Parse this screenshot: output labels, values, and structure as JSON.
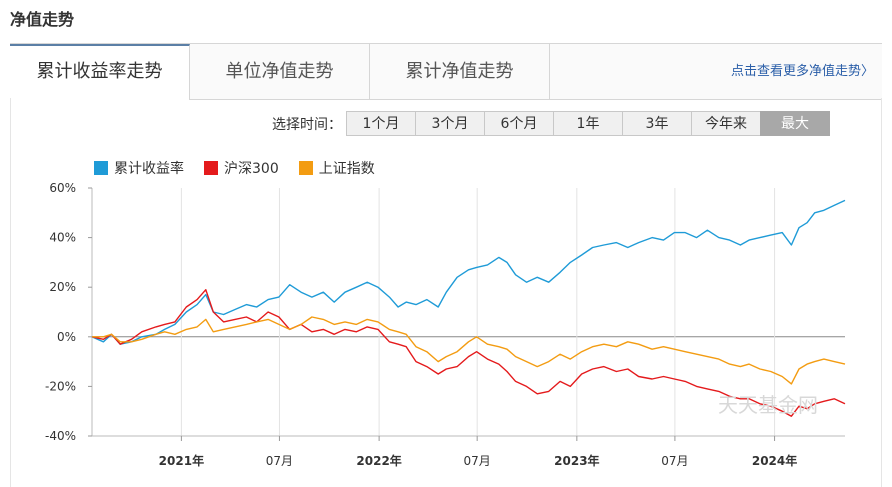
{
  "page_title": "净值走势",
  "tabs": [
    {
      "label": "累计收益率走势",
      "active": true
    },
    {
      "label": "单位净值走势",
      "active": false
    },
    {
      "label": "累计净值走势",
      "active": false
    }
  ],
  "more_link": "点击查看更多净值走势〉",
  "range": {
    "label": "选择时间：",
    "options": [
      "1个月",
      "3个月",
      "6个月",
      "1年",
      "3年",
      "今年来",
      "最大"
    ],
    "selected": "最大"
  },
  "watermark": "天天基金网",
  "chart_data": {
    "type": "line",
    "ylim": [
      -40,
      60
    ],
    "yticks": [
      60,
      40,
      20,
      0,
      -20,
      -40
    ],
    "ytick_labels": [
      "60%",
      "40%",
      "20%",
      "0%",
      "-20%",
      "-40%"
    ],
    "x_ticks": [
      {
        "date": "2021-01-01",
        "label": "2021年",
        "bold": true
      },
      {
        "date": "2021-07-01",
        "label": "07月",
        "bold": false
      },
      {
        "date": "2022-01-01",
        "label": "2022年",
        "bold": true
      },
      {
        "date": "2022-07-01",
        "label": "07月",
        "bold": false
      },
      {
        "date": "2023-01-01",
        "label": "2023年",
        "bold": true
      },
      {
        "date": "2023-07-01",
        "label": "07月",
        "bold": false
      },
      {
        "date": "2024-01-01",
        "label": "2024年",
        "bold": true
      }
    ],
    "xlim": [
      "2020-07-20",
      "2024-05-10"
    ],
    "grid": "vertical",
    "legend_position": "top-left",
    "series": [
      {
        "name": "累计收益率",
        "color": "#1f9bd7",
        "points": [
          [
            "2020-07-20",
            0
          ],
          [
            "2020-08-10",
            -2
          ],
          [
            "2020-08-25",
            1
          ],
          [
            "2020-09-10",
            -3
          ],
          [
            "2020-10-01",
            -2
          ],
          [
            "2020-10-20",
            0
          ],
          [
            "2020-11-15",
            1
          ],
          [
            "2020-12-01",
            3
          ],
          [
            "2020-12-20",
            5
          ],
          [
            "2021-01-10",
            10
          ],
          [
            "2021-01-30",
            13
          ],
          [
            "2021-02-15",
            17
          ],
          [
            "2021-03-01",
            10
          ],
          [
            "2021-03-20",
            9
          ],
          [
            "2021-04-10",
            11
          ],
          [
            "2021-05-01",
            13
          ],
          [
            "2021-05-20",
            12
          ],
          [
            "2021-06-10",
            15
          ],
          [
            "2021-06-30",
            16
          ],
          [
            "2021-07-20",
            21
          ],
          [
            "2021-08-10",
            18
          ],
          [
            "2021-08-30",
            16
          ],
          [
            "2021-09-20",
            18
          ],
          [
            "2021-10-10",
            14
          ],
          [
            "2021-10-30",
            18
          ],
          [
            "2021-11-20",
            20
          ],
          [
            "2021-12-10",
            22
          ],
          [
            "2021-12-30",
            20
          ],
          [
            "2022-01-20",
            16
          ],
          [
            "2022-02-05",
            12
          ],
          [
            "2022-02-20",
            14
          ],
          [
            "2022-03-10",
            13
          ],
          [
            "2022-03-30",
            15
          ],
          [
            "2022-04-20",
            12
          ],
          [
            "2022-05-05",
            18
          ],
          [
            "2022-05-25",
            24
          ],
          [
            "2022-06-15",
            27
          ],
          [
            "2022-06-30",
            28
          ],
          [
            "2022-07-20",
            29
          ],
          [
            "2022-08-10",
            32
          ],
          [
            "2022-08-25",
            30
          ],
          [
            "2022-09-10",
            25
          ],
          [
            "2022-09-30",
            22
          ],
          [
            "2022-10-20",
            24
          ],
          [
            "2022-11-10",
            22
          ],
          [
            "2022-12-01",
            26
          ],
          [
            "2022-12-20",
            30
          ],
          [
            "2023-01-10",
            33
          ],
          [
            "2023-01-30",
            36
          ],
          [
            "2023-02-20",
            37
          ],
          [
            "2023-03-15",
            38
          ],
          [
            "2023-04-05",
            36
          ],
          [
            "2023-04-25",
            38
          ],
          [
            "2023-05-20",
            40
          ],
          [
            "2023-06-10",
            39
          ],
          [
            "2023-06-30",
            42
          ],
          [
            "2023-07-20",
            42
          ],
          [
            "2023-08-10",
            40
          ],
          [
            "2023-08-30",
            43
          ],
          [
            "2023-09-20",
            40
          ],
          [
            "2023-10-10",
            39
          ],
          [
            "2023-10-30",
            37
          ],
          [
            "2023-11-15",
            39
          ],
          [
            "2023-12-05",
            40
          ],
          [
            "2023-12-25",
            41
          ],
          [
            "2024-01-15",
            42
          ],
          [
            "2024-02-01",
            37
          ],
          [
            "2024-02-15",
            44
          ],
          [
            "2024-03-01",
            46
          ],
          [
            "2024-03-15",
            50
          ],
          [
            "2024-04-01",
            51
          ],
          [
            "2024-04-20",
            53
          ],
          [
            "2024-05-10",
            55
          ]
        ]
      },
      {
        "name": "沪深300",
        "color": "#e41a1c",
        "points": [
          [
            "2020-07-20",
            0
          ],
          [
            "2020-08-10",
            -1
          ],
          [
            "2020-08-25",
            1
          ],
          [
            "2020-09-10",
            -3
          ],
          [
            "2020-10-01",
            -1
          ],
          [
            "2020-10-20",
            2
          ],
          [
            "2020-11-15",
            4
          ],
          [
            "2020-12-01",
            5
          ],
          [
            "2020-12-20",
            6
          ],
          [
            "2021-01-10",
            12
          ],
          [
            "2021-01-30",
            15
          ],
          [
            "2021-02-15",
            19
          ],
          [
            "2021-03-01",
            10
          ],
          [
            "2021-03-20",
            6
          ],
          [
            "2021-04-10",
            7
          ],
          [
            "2021-05-01",
            8
          ],
          [
            "2021-05-20",
            6
          ],
          [
            "2021-06-10",
            10
          ],
          [
            "2021-06-30",
            8
          ],
          [
            "2021-07-20",
            3
          ],
          [
            "2021-08-10",
            5
          ],
          [
            "2021-08-30",
            2
          ],
          [
            "2021-09-20",
            3
          ],
          [
            "2021-10-10",
            1
          ],
          [
            "2021-10-30",
            3
          ],
          [
            "2021-11-20",
            2
          ],
          [
            "2021-12-10",
            4
          ],
          [
            "2021-12-30",
            3
          ],
          [
            "2022-01-20",
            -2
          ],
          [
            "2022-02-05",
            -3
          ],
          [
            "2022-02-20",
            -4
          ],
          [
            "2022-03-10",
            -10
          ],
          [
            "2022-03-30",
            -12
          ],
          [
            "2022-04-20",
            -15
          ],
          [
            "2022-05-05",
            -13
          ],
          [
            "2022-05-25",
            -12
          ],
          [
            "2022-06-15",
            -8
          ],
          [
            "2022-06-30",
            -6
          ],
          [
            "2022-07-20",
            -9
          ],
          [
            "2022-08-10",
            -11
          ],
          [
            "2022-08-25",
            -14
          ],
          [
            "2022-09-10",
            -18
          ],
          [
            "2022-09-30",
            -20
          ],
          [
            "2022-10-20",
            -23
          ],
          [
            "2022-11-10",
            -22
          ],
          [
            "2022-12-01",
            -18
          ],
          [
            "2022-12-20",
            -20
          ],
          [
            "2023-01-10",
            -15
          ],
          [
            "2023-01-30",
            -13
          ],
          [
            "2023-02-20",
            -12
          ],
          [
            "2023-03-15",
            -14
          ],
          [
            "2023-04-05",
            -13
          ],
          [
            "2023-04-25",
            -16
          ],
          [
            "2023-05-20",
            -17
          ],
          [
            "2023-06-10",
            -16
          ],
          [
            "2023-06-30",
            -17
          ],
          [
            "2023-07-20",
            -18
          ],
          [
            "2023-08-10",
            -20
          ],
          [
            "2023-08-30",
            -21
          ],
          [
            "2023-09-20",
            -22
          ],
          [
            "2023-10-10",
            -24
          ],
          [
            "2023-10-30",
            -25
          ],
          [
            "2023-11-15",
            -25
          ],
          [
            "2023-12-05",
            -27
          ],
          [
            "2023-12-25",
            -28
          ],
          [
            "2024-01-15",
            -30
          ],
          [
            "2024-02-01",
            -32
          ],
          [
            "2024-02-15",
            -28
          ],
          [
            "2024-03-01",
            -29
          ],
          [
            "2024-03-15",
            -27
          ],
          [
            "2024-04-01",
            -26
          ],
          [
            "2024-04-20",
            -25
          ],
          [
            "2024-05-10",
            -27
          ]
        ]
      },
      {
        "name": "上证指数",
        "color": "#f39c12",
        "points": [
          [
            "2020-07-20",
            0
          ],
          [
            "2020-08-10",
            0
          ],
          [
            "2020-08-25",
            1
          ],
          [
            "2020-09-10",
            -2
          ],
          [
            "2020-10-01",
            -2
          ],
          [
            "2020-10-20",
            -1
          ],
          [
            "2020-11-15",
            1
          ],
          [
            "2020-12-01",
            2
          ],
          [
            "2020-12-20",
            1
          ],
          [
            "2021-01-10",
            3
          ],
          [
            "2021-01-30",
            4
          ],
          [
            "2021-02-15",
            7
          ],
          [
            "2021-03-01",
            2
          ],
          [
            "2021-03-20",
            3
          ],
          [
            "2021-04-10",
            4
          ],
          [
            "2021-05-01",
            5
          ],
          [
            "2021-05-20",
            6
          ],
          [
            "2021-06-10",
            7
          ],
          [
            "2021-06-30",
            5
          ],
          [
            "2021-07-20",
            3
          ],
          [
            "2021-08-10",
            5
          ],
          [
            "2021-08-30",
            8
          ],
          [
            "2021-09-20",
            7
          ],
          [
            "2021-10-10",
            5
          ],
          [
            "2021-10-30",
            6
          ],
          [
            "2021-11-20",
            5
          ],
          [
            "2021-12-10",
            7
          ],
          [
            "2021-12-30",
            6
          ],
          [
            "2022-01-20",
            3
          ],
          [
            "2022-02-05",
            2
          ],
          [
            "2022-02-20",
            1
          ],
          [
            "2022-03-10",
            -4
          ],
          [
            "2022-03-30",
            -6
          ],
          [
            "2022-04-20",
            -10
          ],
          [
            "2022-05-05",
            -8
          ],
          [
            "2022-05-25",
            -6
          ],
          [
            "2022-06-15",
            -2
          ],
          [
            "2022-06-30",
            0
          ],
          [
            "2022-07-20",
            -3
          ],
          [
            "2022-08-10",
            -4
          ],
          [
            "2022-08-25",
            -5
          ],
          [
            "2022-09-10",
            -8
          ],
          [
            "2022-09-30",
            -10
          ],
          [
            "2022-10-20",
            -12
          ],
          [
            "2022-11-10",
            -10
          ],
          [
            "2022-12-01",
            -7
          ],
          [
            "2022-12-20",
            -9
          ],
          [
            "2023-01-10",
            -6
          ],
          [
            "2023-01-30",
            -4
          ],
          [
            "2023-02-20",
            -3
          ],
          [
            "2023-03-15",
            -4
          ],
          [
            "2023-04-05",
            -2
          ],
          [
            "2023-04-25",
            -3
          ],
          [
            "2023-05-20",
            -5
          ],
          [
            "2023-06-10",
            -4
          ],
          [
            "2023-06-30",
            -5
          ],
          [
            "2023-07-20",
            -6
          ],
          [
            "2023-08-10",
            -7
          ],
          [
            "2023-08-30",
            -8
          ],
          [
            "2023-09-20",
            -9
          ],
          [
            "2023-10-10",
            -11
          ],
          [
            "2023-10-30",
            -12
          ],
          [
            "2023-11-15",
            -11
          ],
          [
            "2023-12-05",
            -13
          ],
          [
            "2023-12-25",
            -14
          ],
          [
            "2024-01-15",
            -16
          ],
          [
            "2024-02-01",
            -19
          ],
          [
            "2024-02-15",
            -13
          ],
          [
            "2024-03-01",
            -11
          ],
          [
            "2024-03-15",
            -10
          ],
          [
            "2024-04-01",
            -9
          ],
          [
            "2024-04-20",
            -10
          ],
          [
            "2024-05-10",
            -11
          ]
        ]
      }
    ]
  }
}
